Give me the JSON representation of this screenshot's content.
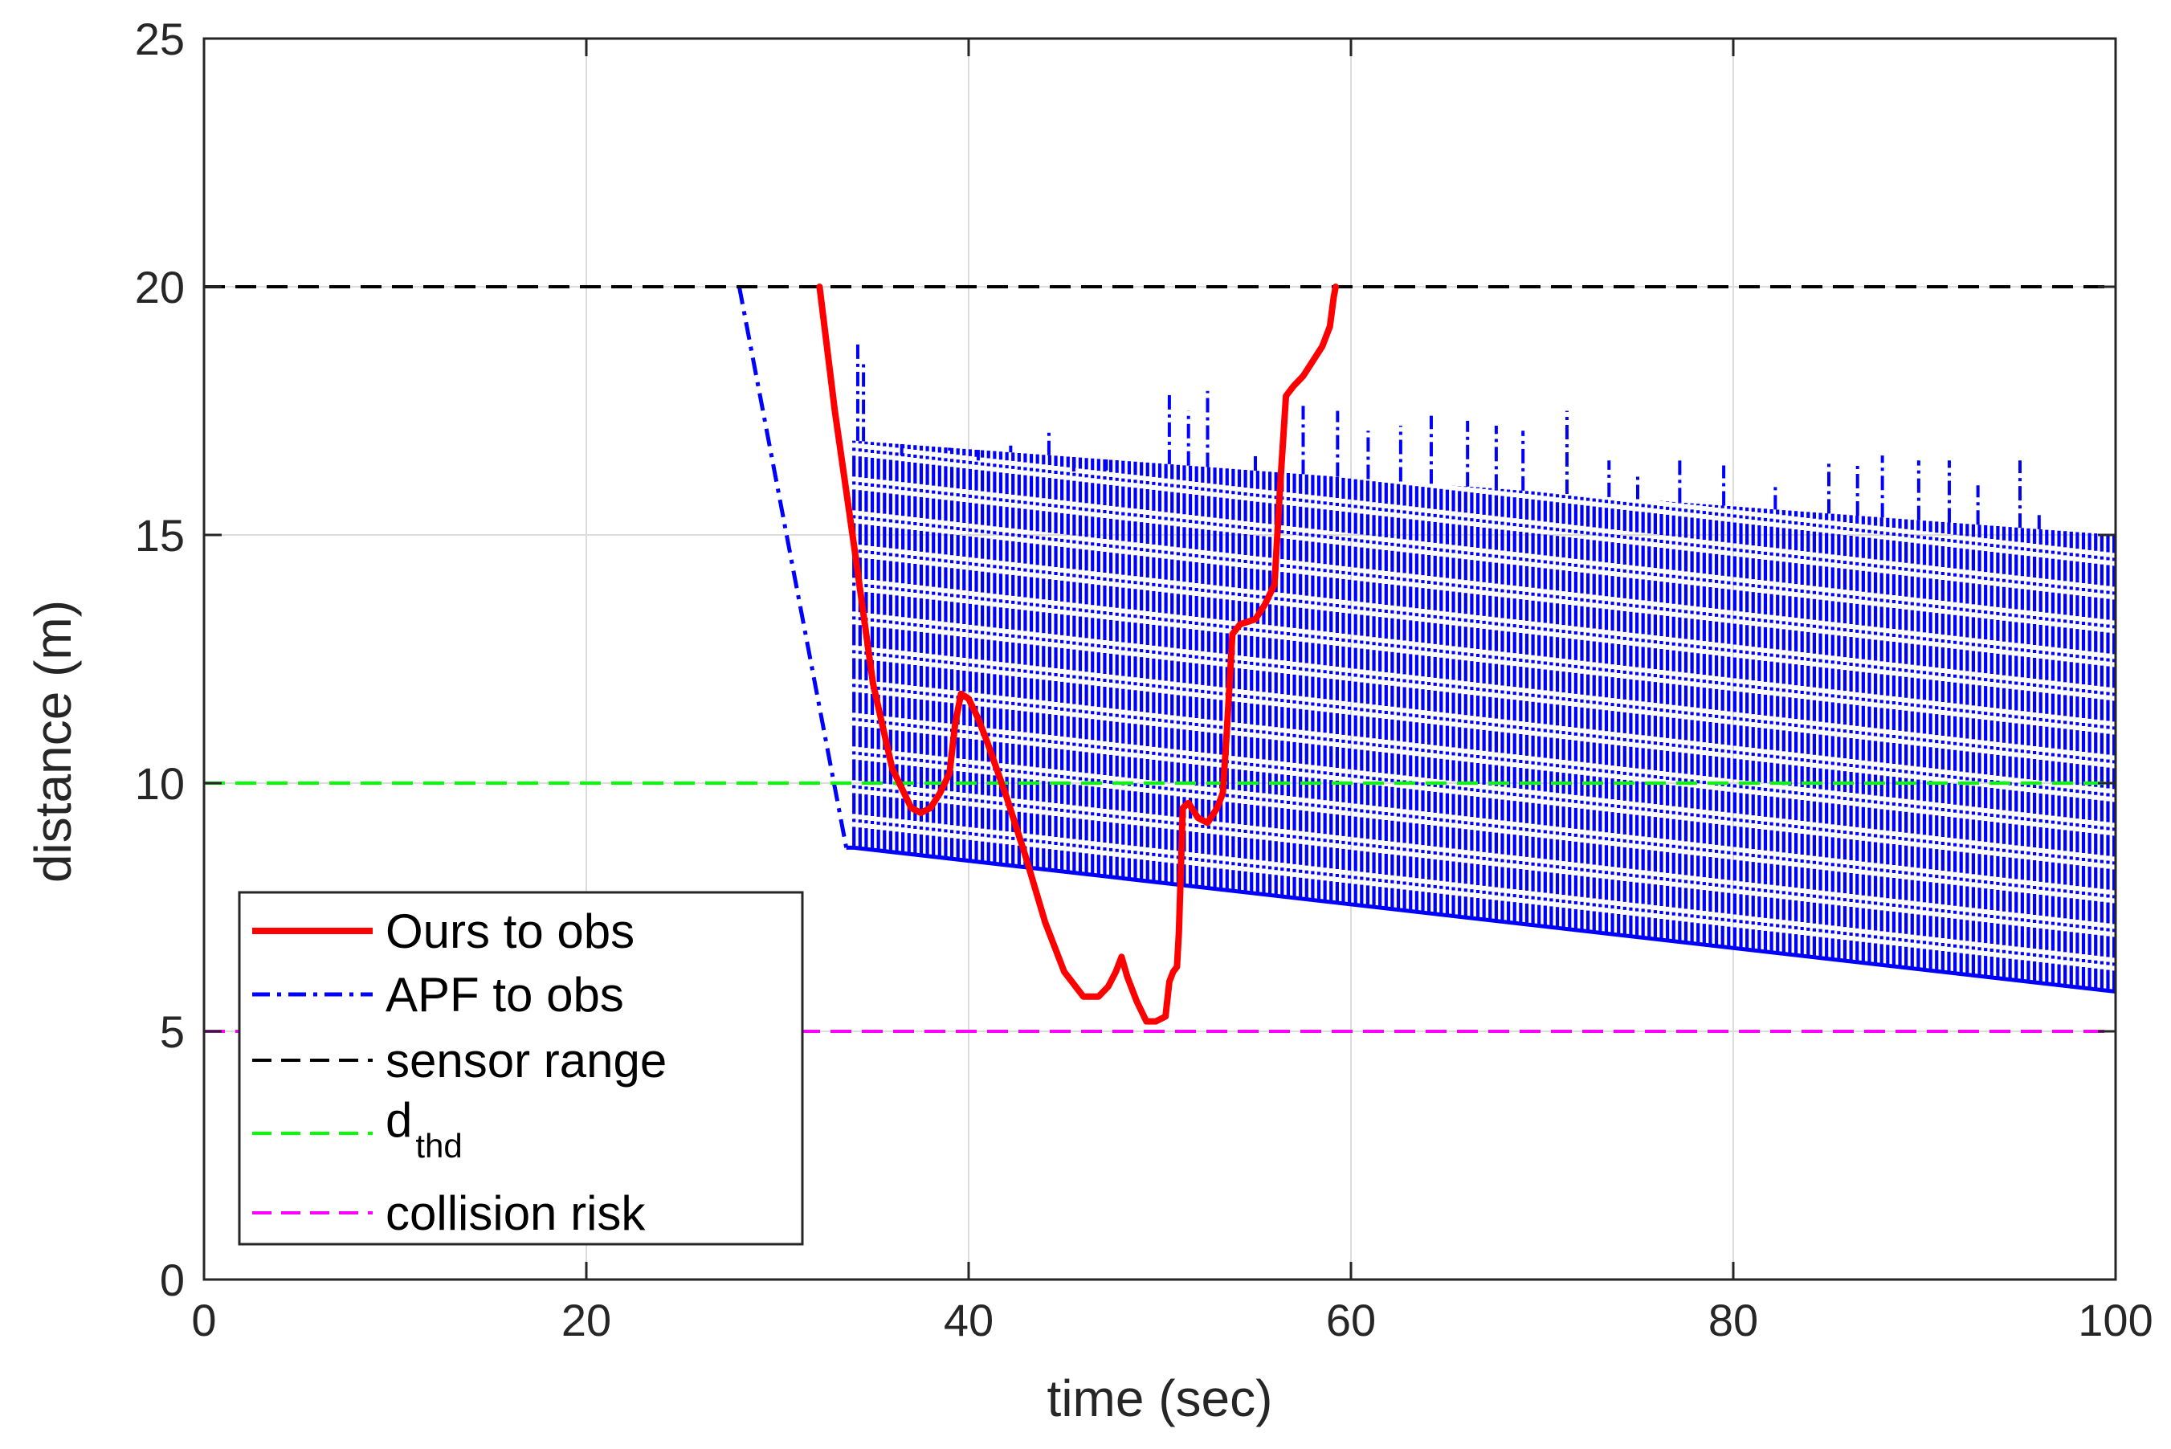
{
  "chart_data": {
    "type": "line",
    "title": "",
    "xlabel": "time (sec)",
    "ylabel": "distance (m)",
    "xlim": [
      0,
      100
    ],
    "ylim": [
      0,
      25
    ],
    "xticks": [
      0,
      20,
      40,
      60,
      80,
      100
    ],
    "yticks": [
      0,
      5,
      10,
      15,
      20,
      25
    ],
    "grid": true,
    "legend_position": "bottom-left",
    "colors": {
      "ours": "#ff0000",
      "apf": "#0000ff",
      "sensor": "#000000",
      "dthd": "#00ff00",
      "collision": "#ff00ff"
    },
    "series": [
      {
        "name": "Ours to obs",
        "style": "solid",
        "x": [
          32.2,
          33,
          34,
          35,
          36,
          37,
          37.5,
          38,
          38.5,
          39,
          39.3,
          39.6,
          40,
          40.5,
          41,
          42,
          43,
          44,
          45,
          46,
          46.8,
          47.3,
          47.7,
          48.0,
          48.3,
          48.8,
          49.3,
          49.8,
          50.3,
          50.5,
          50.7,
          50.9,
          51.0,
          51.2,
          51.5,
          52,
          52.5,
          53,
          53.3,
          53.5,
          53.8,
          54.2,
          55,
          55.5,
          56,
          56.3,
          56.6,
          57,
          57.5,
          58,
          58.5,
          58.9,
          59.1,
          59.2
        ],
        "y": [
          20,
          17.5,
          14.8,
          12.0,
          10.3,
          9.5,
          9.4,
          9.5,
          9.8,
          10.2,
          11.2,
          11.8,
          11.7,
          11.3,
          10.8,
          9.7,
          8.5,
          7.2,
          6.2,
          5.7,
          5.7,
          5.9,
          6.2,
          6.5,
          6.1,
          5.6,
          5.2,
          5.2,
          5.3,
          6.0,
          6.2,
          6.3,
          7.0,
          9.5,
          9.6,
          9.3,
          9.2,
          9.5,
          9.8,
          11.0,
          13.0,
          13.2,
          13.3,
          13.6,
          14.0,
          16.0,
          17.8,
          18.0,
          18.2,
          18.5,
          18.8,
          19.2,
          19.8,
          20.0
        ]
      },
      {
        "name": "APF to obs",
        "style": "dashdot",
        "start_x": 28,
        "start_y": 20,
        "drop_end_x": 33.6,
        "drop_end_y": 8.7,
        "band_start_x": 34.0,
        "band_end_x": 100,
        "lower_start_y": 8.7,
        "lower_end_y": 5.8,
        "upper_start_y": 16.9,
        "upper_end_y": 15.0,
        "spike_x": [
          34.2,
          34.5,
          36.5,
          39,
          40.5,
          42.2,
          44.2,
          45.5,
          47.2,
          50.5,
          51.5,
          52.5,
          55,
          57.5,
          59.3,
          60.9,
          62.6,
          64.2,
          66.1,
          67.6,
          69,
          71.3,
          73.5,
          75,
          77.2,
          79.5,
          82.2,
          85,
          86.5,
          87.8,
          89.7,
          91.3,
          92.8,
          95,
          96
        ],
        "spike_y": [
          18.9,
          18.5,
          16.6,
          16.7,
          16.5,
          16.8,
          17.1,
          16.2,
          16.3,
          17.9,
          17.5,
          17.9,
          16.6,
          17.6,
          17.5,
          17.1,
          17.2,
          17.4,
          17.3,
          17.2,
          17.1,
          17.5,
          16.5,
          16.2,
          16.5,
          16.4,
          16.0,
          16.5,
          16.4,
          16.6,
          16.5,
          16.5,
          16.0,
          16.5,
          15.4
        ]
      },
      {
        "name": "sensor range",
        "style": "dashed",
        "y": 20
      },
      {
        "name": "d",
        "subscript": "thd",
        "style": "dashed",
        "y": 10
      },
      {
        "name": "collision risk",
        "style": "dashed",
        "y": 5
      }
    ]
  }
}
